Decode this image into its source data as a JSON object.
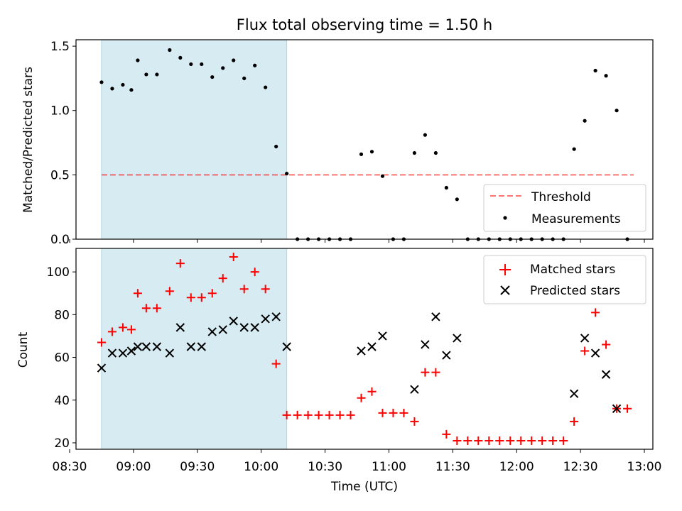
{
  "title": "Flux total observing time = 1.50 h",
  "colors": {
    "shade": "#add8e6",
    "threshold": "#ff0000",
    "measurement": "#000000",
    "matched": "#ff0000",
    "predicted": "#000000"
  },
  "chart_data": [
    {
      "type": "scatter",
      "ylabel": "Matched/Predicted stars",
      "ylim": [
        0,
        1.55
      ],
      "yticks": [
        "0.0",
        "0.5",
        "1.0",
        "1.5"
      ],
      "legend_position": "lower-right",
      "shaded_region": [
        "08:45",
        "10:12"
      ],
      "threshold": {
        "name": "Threshold",
        "value": 0.5,
        "x_range": [
          "08:45",
          "12:55"
        ]
      },
      "series": [
        {
          "name": "Measurements",
          "points": [
            [
              "08:45",
              1.22
            ],
            [
              "08:50",
              1.17
            ],
            [
              "08:55",
              1.2
            ],
            [
              "08:59",
              1.16
            ],
            [
              "09:02",
              1.39
            ],
            [
              "09:06",
              1.28
            ],
            [
              "09:11",
              1.28
            ],
            [
              "09:17",
              1.47
            ],
            [
              "09:22",
              1.41
            ],
            [
              "09:27",
              1.36
            ],
            [
              "09:32",
              1.36
            ],
            [
              "09:37",
              1.26
            ],
            [
              "09:42",
              1.33
            ],
            [
              "09:47",
              1.39
            ],
            [
              "09:52",
              1.25
            ],
            [
              "09:57",
              1.35
            ],
            [
              "10:02",
              1.18
            ],
            [
              "10:07",
              0.72
            ],
            [
              "10:12",
              0.51
            ],
            [
              "10:17",
              0.0
            ],
            [
              "10:22",
              0.0
            ],
            [
              "10:27",
              0.0
            ],
            [
              "10:32",
              0.0
            ],
            [
              "10:37",
              0.0
            ],
            [
              "10:42",
              0.0
            ],
            [
              "10:47",
              0.66
            ],
            [
              "10:52",
              0.68
            ],
            [
              "10:57",
              0.49
            ],
            [
              "11:02",
              0.0
            ],
            [
              "11:07",
              0.0
            ],
            [
              "11:12",
              0.67
            ],
            [
              "11:17",
              0.81
            ],
            [
              "11:22",
              0.67
            ],
            [
              "11:27",
              0.4
            ],
            [
              "11:32",
              0.31
            ],
            [
              "11:37",
              0.0
            ],
            [
              "11:42",
              0.0
            ],
            [
              "11:47",
              0.0
            ],
            [
              "11:52",
              0.0
            ],
            [
              "11:57",
              0.0
            ],
            [
              "12:02",
              0.0
            ],
            [
              "12:07",
              0.0
            ],
            [
              "12:12",
              0.0
            ],
            [
              "12:17",
              0.0
            ],
            [
              "12:22",
              0.0
            ],
            [
              "12:27",
              0.7
            ],
            [
              "12:32",
              0.92
            ],
            [
              "12:37",
              1.31
            ],
            [
              "12:42",
              1.27
            ],
            [
              "12:47",
              1.0
            ],
            [
              "12:52",
              0.0
            ]
          ]
        }
      ]
    },
    {
      "type": "scatter",
      "xlabel": "Time (UTC)",
      "ylabel": "Count",
      "ylim": [
        17,
        111
      ],
      "yticks": [
        "20",
        "40",
        "60",
        "80",
        "100"
      ],
      "xlim": [
        "08:33",
        "13:04"
      ],
      "xticks": [
        "08:30",
        "09:00",
        "09:30",
        "10:00",
        "10:30",
        "11:00",
        "11:30",
        "12:00",
        "12:30",
        "13:00"
      ],
      "legend_position": "top-right",
      "shaded_region": [
        "08:45",
        "10:12"
      ],
      "series": [
        {
          "name": "Matched stars",
          "marker": "plus",
          "points": [
            [
              "08:45",
              67
            ],
            [
              "08:50",
              72
            ],
            [
              "08:55",
              74
            ],
            [
              "08:59",
              73
            ],
            [
              "09:02",
              90
            ],
            [
              "09:06",
              83
            ],
            [
              "09:11",
              83
            ],
            [
              "09:17",
              91
            ],
            [
              "09:22",
              104
            ],
            [
              "09:27",
              88
            ],
            [
              "09:32",
              88
            ],
            [
              "09:37",
              90
            ],
            [
              "09:42",
              97
            ],
            [
              "09:47",
              107
            ],
            [
              "09:52",
              92
            ],
            [
              "09:57",
              100
            ],
            [
              "10:02",
              92
            ],
            [
              "10:07",
              57
            ],
            [
              "10:12",
              33
            ],
            [
              "10:17",
              33
            ],
            [
              "10:22",
              33
            ],
            [
              "10:27",
              33
            ],
            [
              "10:32",
              33
            ],
            [
              "10:37",
              33
            ],
            [
              "10:42",
              33
            ],
            [
              "10:47",
              41
            ],
            [
              "10:52",
              44
            ],
            [
              "10:57",
              34
            ],
            [
              "11:02",
              34
            ],
            [
              "11:07",
              34
            ],
            [
              "11:12",
              30
            ],
            [
              "11:17",
              53
            ],
            [
              "11:22",
              53
            ],
            [
              "11:27",
              24
            ],
            [
              "11:32",
              21
            ],
            [
              "11:37",
              21
            ],
            [
              "11:42",
              21
            ],
            [
              "11:47",
              21
            ],
            [
              "11:52",
              21
            ],
            [
              "11:57",
              21
            ],
            [
              "12:02",
              21
            ],
            [
              "12:07",
              21
            ],
            [
              "12:12",
              21
            ],
            [
              "12:17",
              21
            ],
            [
              "12:22",
              21
            ],
            [
              "12:27",
              30
            ],
            [
              "12:32",
              63
            ],
            [
              "12:37",
              81
            ],
            [
              "12:42",
              66
            ],
            [
              "12:47",
              36
            ],
            [
              "12:52",
              36
            ]
          ]
        },
        {
          "name": "Predicted stars",
          "marker": "x",
          "points": [
            [
              "08:45",
              55
            ],
            [
              "08:50",
              62
            ],
            [
              "08:55",
              62
            ],
            [
              "08:59",
              63
            ],
            [
              "09:02",
              65
            ],
            [
              "09:06",
              65
            ],
            [
              "09:11",
              65
            ],
            [
              "09:17",
              62
            ],
            [
              "09:22",
              74
            ],
            [
              "09:27",
              65
            ],
            [
              "09:32",
              65
            ],
            [
              "09:37",
              72
            ],
            [
              "09:42",
              73
            ],
            [
              "09:47",
              77
            ],
            [
              "09:52",
              74
            ],
            [
              "09:57",
              74
            ],
            [
              "10:02",
              78
            ],
            [
              "10:07",
              79
            ],
            [
              "10:12",
              65
            ],
            [
              "10:47",
              63
            ],
            [
              "10:52",
              65
            ],
            [
              "10:57",
              70
            ],
            [
              "11:12",
              45
            ],
            [
              "11:17",
              66
            ],
            [
              "11:22",
              79
            ],
            [
              "11:27",
              61
            ],
            [
              "11:32",
              69
            ],
            [
              "12:27",
              43
            ],
            [
              "12:32",
              69
            ],
            [
              "12:37",
              62
            ],
            [
              "12:42",
              52
            ],
            [
              "12:47",
              36
            ]
          ]
        }
      ]
    }
  ]
}
